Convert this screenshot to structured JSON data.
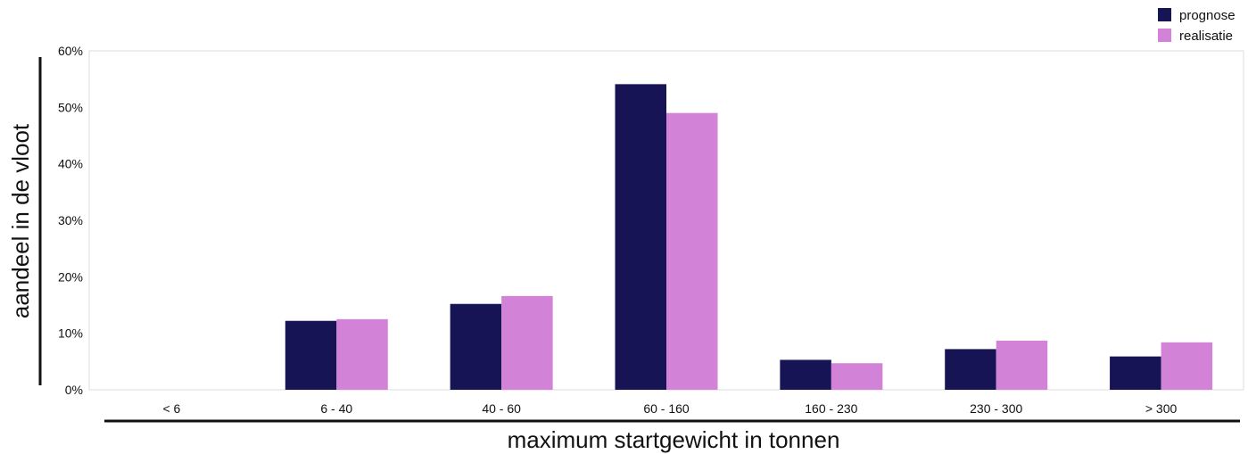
{
  "chart_data": {
    "type": "bar",
    "categories": [
      "< 6",
      "6 - 40",
      "40 - 60",
      "60 - 160",
      "160 - 230",
      "230 - 300",
      "> 300"
    ],
    "series": [
      {
        "name": "prognose",
        "color": "#161455",
        "values": [
          0,
          12.2,
          15.2,
          54.1,
          5.3,
          7.2,
          5.9
        ]
      },
      {
        "name": "realisatie",
        "color": "#d283d7",
        "values": [
          0,
          12.5,
          16.6,
          49.0,
          4.7,
          8.7,
          8.4
        ]
      }
    ],
    "xlabel": "maximum startgewicht in tonnen",
    "ylabel": "aandeel in de vloot",
    "ylim": [
      0,
      60
    ],
    "yticks": [
      0,
      10,
      20,
      30,
      40,
      50,
      60
    ],
    "ytick_labels": [
      "0%",
      "10%",
      "20%",
      "30%",
      "40%",
      "50%",
      "60%"
    ],
    "legend_position": "top-right",
    "grid": false
  }
}
